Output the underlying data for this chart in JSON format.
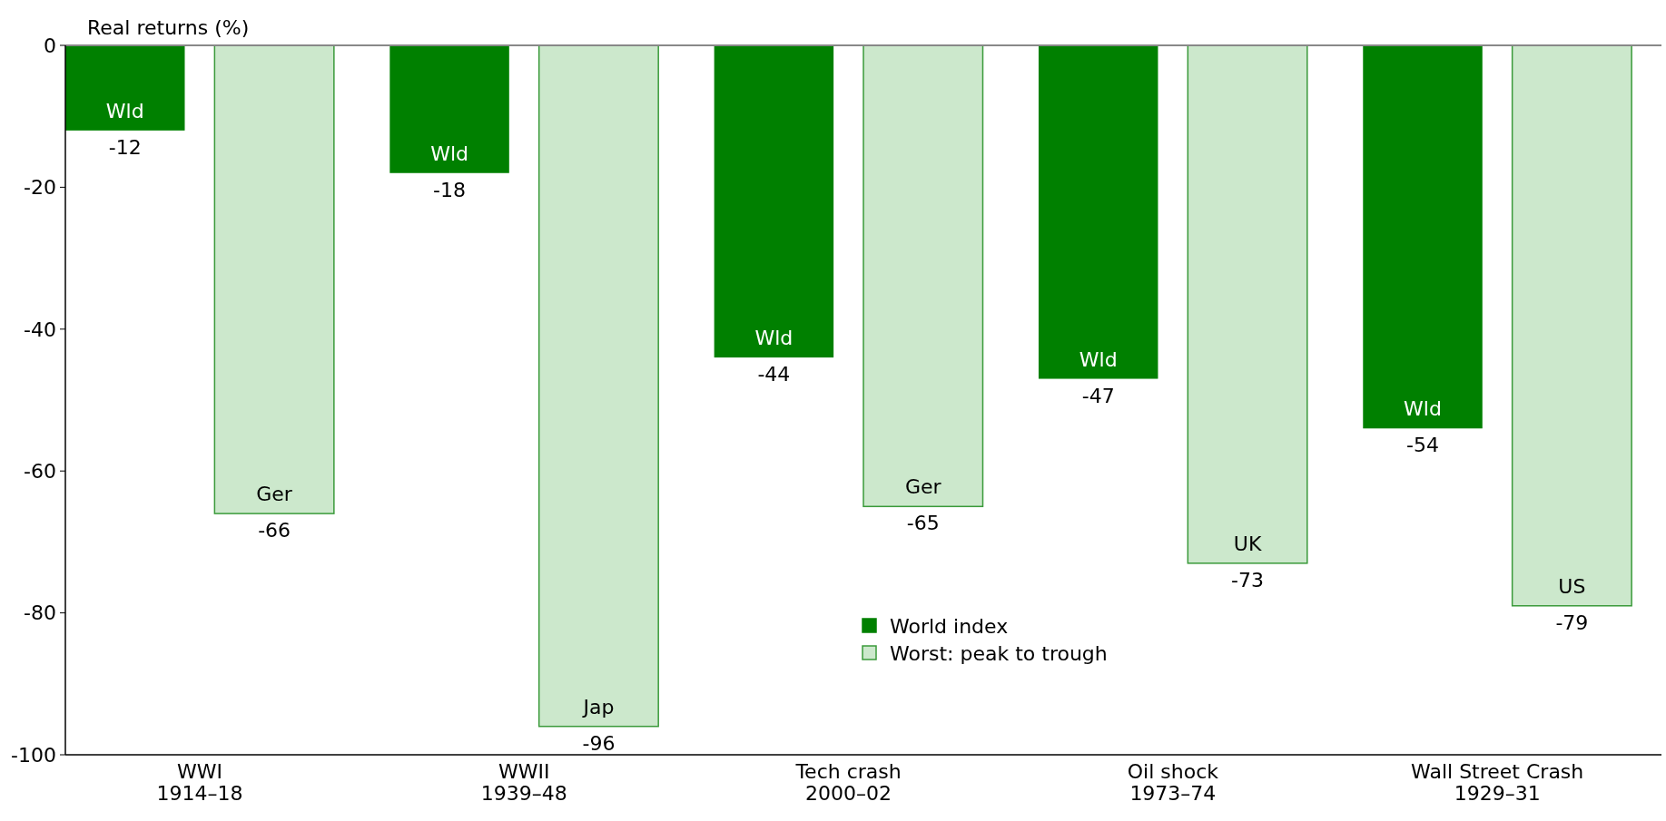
{
  "chart_data": {
    "type": "bar",
    "ylabel": "Real returns (%)",
    "categories": [
      "WWI\n1914–18",
      "WWII\n1939–48",
      "Tech crash\n2000–02",
      "Oil shock\n1973–74",
      "Wall Street Crash\n1929–31"
    ],
    "series": [
      {
        "name": "World index",
        "color": "#008000",
        "values": [
          -12,
          -18,
          -44,
          -47,
          -54
        ]
      },
      {
        "name": "Worst: peak to trough",
        "color": "#cce8cc",
        "values": [
          -66,
          -96,
          -65,
          -73,
          -79
        ]
      }
    ],
    "ylim": [
      -100,
      0
    ],
    "yticks": [
      0,
      -20,
      -40,
      -60,
      -80,
      -100
    ],
    "grid": false,
    "legend": "bottom",
    "data_labels": true,
    "annotations": [
      "Wld",
      "Ger",
      "Wld",
      "Jap",
      "Wld",
      "Ger",
      "Wld",
      "UK",
      "Wld",
      "US"
    ]
  }
}
